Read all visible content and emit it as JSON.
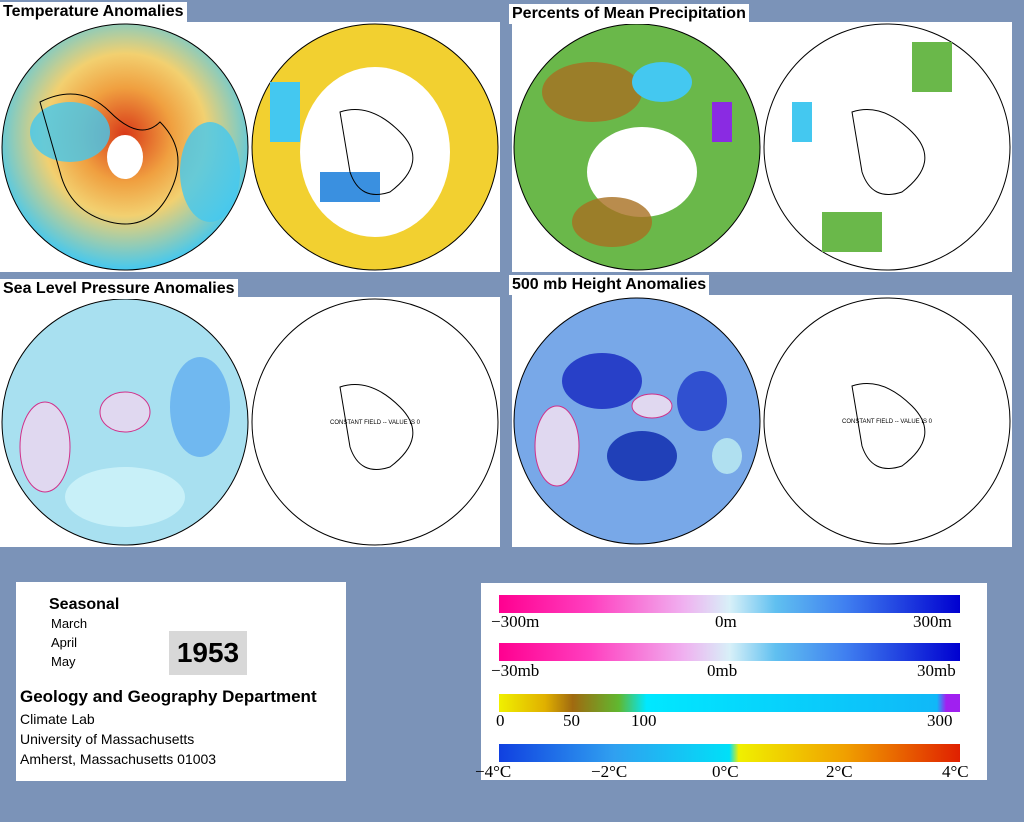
{
  "panels": {
    "temperature": {
      "title": "Temperature Anomalies"
    },
    "precipitation": {
      "title": "Percents of Mean Precipitation"
    },
    "slp": {
      "title": "Sea Level Pressure Anomalies",
      "constant_note": "CONSTANT FIELD -- VALUE IS 0"
    },
    "height": {
      "title": "500 mb Height Anomalies",
      "constant_note": "CONSTANT FIELD -- VALUE IS 0"
    }
  },
  "info": {
    "seasonal": "Seasonal",
    "months": [
      "March",
      "April",
      "May"
    ],
    "year": "1953",
    "department": "Geology and Geography Department",
    "address_lines": [
      "Climate Lab",
      "University of Massachusetts",
      "Amherst, Massachusetts 01003"
    ]
  },
  "legend": {
    "height_scale": {
      "labels": [
        "−300m",
        "0m",
        "300m"
      ]
    },
    "pressure_scale": {
      "labels": [
        "−30mb",
        "0mb",
        "30mb"
      ]
    },
    "precip_scale": {
      "labels": [
        "0",
        "50",
        "100",
        "300"
      ]
    },
    "temp_scale": {
      "labels": [
        "−4°C",
        "−2°C",
        "0°C",
        "2°C",
        "4°C"
      ]
    }
  },
  "colors": {
    "page_background": "#7b93b8",
    "anomaly_negative_magenta": "#ff0080",
    "anomaly_positive_blue": "#0000a0",
    "precip_brown": "#a06a10",
    "precip_green": "#5cb82e",
    "precip_cyan": "#00e8ff",
    "temp_warm": "#f0c020",
    "temp_hot": "#e03010",
    "temp_cool": "#38c0f0"
  }
}
